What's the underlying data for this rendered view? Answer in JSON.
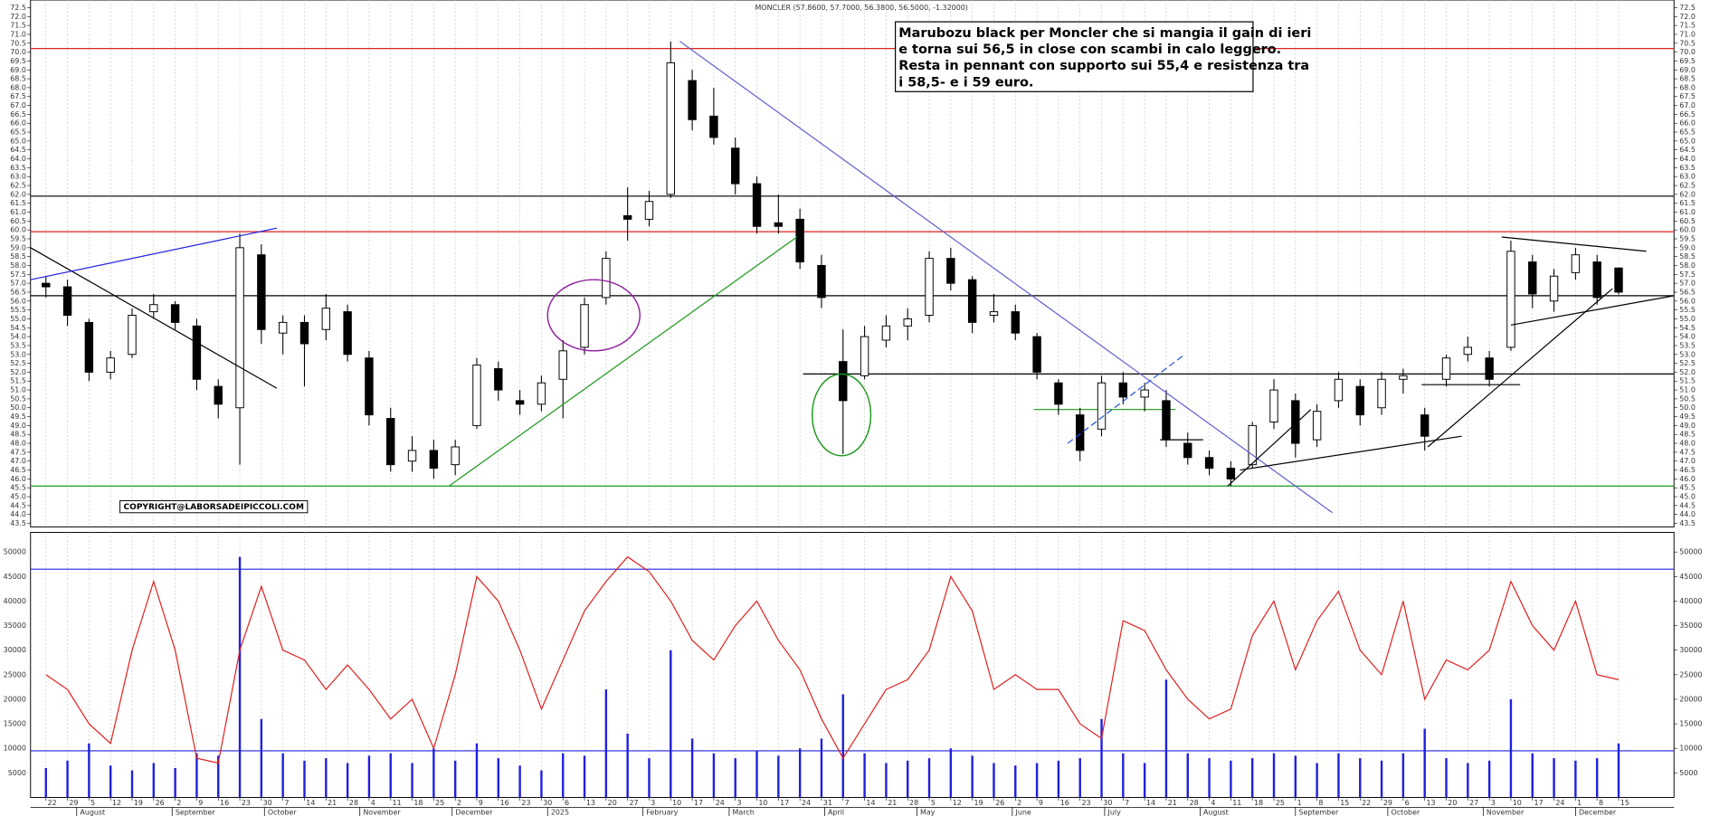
{
  "chart_data": {
    "type": "candlestick",
    "title": "MONCLER (57.8600, 57.7000, 56.3800, 56.5000, -1.32000)",
    "annotation": [
      "Marubozu black per Moncler che si mangia il gain di ieri",
      "e torna sui 56,5 in close con scambi in calo leggero.",
      "Resta in pennant con supporto sui 55,4 e resistenza tra",
      "i 58,5- e i 59 euro."
    ],
    "copyright": "COPYRIGHT@LABORSADEIPICCOLI.COM",
    "xlim": [
      "2024-07-17",
      "2026-01-02"
    ],
    "x": [
      "2024-07-22",
      "2024-07-29",
      "2024-08-05",
      "2024-08-12",
      "2024-08-19",
      "2024-08-26",
      "2024-09-02",
      "2024-09-09",
      "2024-09-16",
      "2024-09-23",
      "2024-09-30",
      "2024-10-07",
      "2024-10-14",
      "2024-10-21",
      "2024-10-28",
      "2024-11-04",
      "2024-11-11",
      "2024-11-18",
      "2024-11-25",
      "2024-12-02",
      "2024-12-09",
      "2024-12-16",
      "2024-12-23",
      "2024-12-30",
      "2025-01-06",
      "2025-01-13",
      "2025-01-20",
      "2025-01-27",
      "2025-02-03",
      "2025-02-10",
      "2025-02-17",
      "2025-02-24",
      "2025-03-03",
      "2025-03-10",
      "2025-03-17",
      "2025-03-24",
      "2025-03-31",
      "2025-04-07",
      "2025-04-14",
      "2025-04-21",
      "2025-04-28",
      "2025-05-05",
      "2025-05-12",
      "2025-05-19",
      "2025-05-26",
      "2025-06-02",
      "2025-06-09",
      "2025-06-16",
      "2025-06-23",
      "2025-06-30",
      "2025-07-07",
      "2025-07-14",
      "2025-07-21",
      "2025-07-28",
      "2025-08-04",
      "2025-08-11",
      "2025-08-18",
      "2025-08-25",
      "2025-09-01",
      "2025-09-08",
      "2025-09-15",
      "2025-09-22",
      "2025-09-29",
      "2025-10-06",
      "2025-10-13",
      "2025-10-20",
      "2025-10-27",
      "2025-11-03",
      "2025-11-10",
      "2025-11-17",
      "2025-11-24",
      "2025-12-01",
      "2025-12-08",
      "2025-12-15"
    ],
    "x_day_labels": [
      "22",
      "29",
      "5",
      "12",
      "19",
      "26",
      "2",
      "9",
      "16",
      "23",
      "30",
      "7",
      "14",
      "21",
      "28",
      "4",
      "11",
      "18",
      "25",
      "2",
      "9",
      "16",
      "23",
      "30",
      "6",
      "13",
      "20",
      "27",
      "3",
      "10",
      "17",
      "24",
      "3",
      "10",
      "17",
      "24",
      "31",
      "7",
      "14",
      "21",
      "28",
      "5",
      "12",
      "19",
      "26",
      "2",
      "9",
      "16",
      "23",
      "30",
      "7",
      "14",
      "21",
      "28",
      "4",
      "11",
      "18",
      "25",
      "1",
      "8",
      "15",
      "22",
      "29",
      "6",
      "13",
      "20",
      "27",
      "3",
      "10",
      "17",
      "24",
      "1",
      "8",
      "15"
    ],
    "xticks": [
      {
        "value": "2024-08-01",
        "label": "August"
      },
      {
        "value": "2024-09-01",
        "label": "September"
      },
      {
        "value": "2024-10-01",
        "label": "October"
      },
      {
        "value": "2024-11-01",
        "label": "November"
      },
      {
        "value": "2024-12-01",
        "label": "December"
      },
      {
        "value": "2025-01-01",
        "label": "2025"
      },
      {
        "value": "2025-02-01",
        "label": "February"
      },
      {
        "value": "2025-03-01",
        "label": "March"
      },
      {
        "value": "2025-04-01",
        "label": "April"
      },
      {
        "value": "2025-05-01",
        "label": "May"
      },
      {
        "value": "2025-06-01",
        "label": "June"
      },
      {
        "value": "2025-07-01",
        "label": "July"
      },
      {
        "value": "2025-08-01",
        "label": "August"
      },
      {
        "value": "2025-09-01",
        "label": "September"
      },
      {
        "value": "2025-10-01",
        "label": "October"
      },
      {
        "value": "2025-11-01",
        "label": "November"
      },
      {
        "value": "2025-12-01",
        "label": "December"
      }
    ],
    "open": [
      57.0,
      56.8,
      54.8,
      52.0,
      53.0,
      55.4,
      55.8,
      54.6,
      51.2,
      50.0,
      58.6,
      54.2,
      54.8,
      54.4,
      55.4,
      52.8,
      49.4,
      47.0,
      47.6,
      46.8,
      49.0,
      52.2,
      50.4,
      50.2,
      51.6,
      53.4,
      56.2,
      60.8,
      60.6,
      62.0,
      68.4,
      66.4,
      64.6,
      62.6,
      60.4,
      60.6,
      58.0,
      52.6,
      51.8,
      53.8,
      54.6,
      55.2,
      58.4,
      57.2,
      55.2,
      55.4,
      54.0,
      51.4,
      49.6,
      48.8,
      51.4,
      50.6,
      50.4,
      48.0,
      47.2,
      46.6,
      46.8,
      49.2,
      50.4,
      48.2,
      50.4,
      51.2,
      50.0,
      51.6,
      49.6,
      51.6,
      53.0,
      52.8,
      53.4,
      58.2,
      56.0,
      57.6,
      58.2,
      57.86
    ],
    "high": [
      57.4,
      57.2,
      55.0,
      53.2,
      55.6,
      56.4,
      56.0,
      55.0,
      51.6,
      59.8,
      59.2,
      55.2,
      55.2,
      56.4,
      55.8,
      53.2,
      50.0,
      48.4,
      48.2,
      48.2,
      52.8,
      52.6,
      51.0,
      51.8,
      53.8,
      56.2,
      58.8,
      62.4,
      62.2,
      70.6,
      69.0,
      68.0,
      65.2,
      63.0,
      62.0,
      61.2,
      58.6,
      54.4,
      54.6,
      55.2,
      55.6,
      58.8,
      59.0,
      57.4,
      56.4,
      55.8,
      54.2,
      51.6,
      50.0,
      51.8,
      52.0,
      51.4,
      51.0,
      48.6,
      47.6,
      47.0,
      49.2,
      51.6,
      50.8,
      50.2,
      52.0,
      51.6,
      52.0,
      52.2,
      50.0,
      53.0,
      54.0,
      53.2,
      59.4,
      58.6,
      57.8,
      59.0,
      58.6,
      57.9
    ],
    "low": [
      56.2,
      54.6,
      51.5,
      51.6,
      52.8,
      55.0,
      54.4,
      51.0,
      49.4,
      46.8,
      53.6,
      53.0,
      51.2,
      53.8,
      52.6,
      49.0,
      46.4,
      46.4,
      46.0,
      46.2,
      48.8,
      50.4,
      49.6,
      49.8,
      49.4,
      53.0,
      55.8,
      59.4,
      60.2,
      61.8,
      65.6,
      64.8,
      62.0,
      59.8,
      59.8,
      57.8,
      55.6,
      47.4,
      51.6,
      53.4,
      53.8,
      54.8,
      56.6,
      54.2,
      54.8,
      53.8,
      51.6,
      49.6,
      47.0,
      48.4,
      50.2,
      49.8,
      47.8,
      46.8,
      46.2,
      45.6,
      46.6,
      48.8,
      47.2,
      47.8,
      50.0,
      49.0,
      49.6,
      50.8,
      47.6,
      51.2,
      52.6,
      51.2,
      53.2,
      55.6,
      55.4,
      57.2,
      55.8,
      56.38
    ],
    "close": [
      56.8,
      55.2,
      52.0,
      52.8,
      55.2,
      55.8,
      54.8,
      51.6,
      50.2,
      59.0,
      54.4,
      54.8,
      53.6,
      55.6,
      53.0,
      49.6,
      46.8,
      47.6,
      46.6,
      47.8,
      52.4,
      51.0,
      50.2,
      51.4,
      53.2,
      55.8,
      58.4,
      60.6,
      61.6,
      69.4,
      66.2,
      65.2,
      62.6,
      60.2,
      60.2,
      58.2,
      56.2,
      50.4,
      54.0,
      54.6,
      55.0,
      58.4,
      57.0,
      54.8,
      55.4,
      54.2,
      52.0,
      50.2,
      47.6,
      51.4,
      50.6,
      51.0,
      48.2,
      47.2,
      46.6,
      46.0,
      49.0,
      51.0,
      48.0,
      49.8,
      51.6,
      49.6,
      51.6,
      51.8,
      48.4,
      52.8,
      53.4,
      51.6,
      58.8,
      56.4,
      57.4,
      58.6,
      56.2,
      56.5
    ],
    "ylim": [
      43.3,
      72.93
    ],
    "yticks": [
      43.5,
      {
        "value": 44,
        "label": "44.0"
      },
      44.5,
      {
        "value": 45,
        "label": "45.0"
      },
      45.5,
      {
        "value": 46,
        "label": "46.0"
      },
      46.5,
      {
        "value": 47,
        "label": "47.0"
      },
      47.5,
      {
        "value": 48,
        "label": "48.0"
      },
      48.5,
      {
        "value": 49,
        "label": "49.0"
      },
      49.5,
      {
        "value": 50,
        "label": "50.0"
      },
      50.5,
      {
        "value": 51,
        "label": "51.0"
      },
      51.5,
      {
        "value": 52,
        "label": "52.0"
      },
      52.5,
      {
        "value": 53,
        "label": "53.0"
      },
      53.5,
      {
        "value": 54,
        "label": "54.0"
      },
      54.5,
      {
        "value": 55,
        "label": "55.0"
      },
      55.5,
      {
        "value": 56,
        "label": "56.0"
      },
      56.5,
      {
        "value": 57,
        "label": "57.0"
      },
      57.5,
      {
        "value": 58,
        "label": "58.0"
      },
      58.5,
      {
        "value": 59,
        "label": "59.0"
      },
      59.5,
      {
        "value": 60,
        "label": "60.0"
      },
      60.5,
      {
        "value": 61,
        "label": "61.0"
      },
      61.5,
      {
        "value": 62,
        "label": "62.0"
      },
      62.5,
      {
        "value": 63,
        "label": "63.0"
      },
      63.5,
      {
        "value": 64,
        "label": "64.0"
      },
      64.5,
      {
        "value": 65,
        "label": "65.0"
      },
      65.5,
      {
        "value": 66,
        "label": "66.0"
      },
      66.5,
      {
        "value": 67,
        "label": "67.0"
      },
      67.5,
      {
        "value": 68,
        "label": "68.0"
      },
      68.5,
      {
        "value": 69,
        "label": "69.0"
      },
      69.5,
      {
        "value": 70,
        "label": "70.0"
      },
      70.5,
      {
        "value": 71,
        "label": "71.0"
      },
      71.5,
      {
        "value": 72,
        "label": "72.0"
      },
      72.5
    ],
    "levels": [
      {
        "value": 70.2,
        "color": "#e02020"
      },
      {
        "value": 61.9,
        "color": "#000000"
      },
      {
        "value": 59.9,
        "color": "#e02020"
      },
      {
        "value": 56.3,
        "color": "#000000"
      },
      {
        "value": 51.9,
        "color": "#000000",
        "from": "2025-03-25"
      },
      {
        "value": 45.6,
        "color": "#1a9a1a"
      },
      {
        "value": 49.9,
        "color": "#1a9a1a",
        "from": "2025-06-08",
        "to": "2025-07-24"
      }
    ],
    "trendlines": [
      {
        "x": [
          "2024-07-17",
          "2024-10-05"
        ],
        "y": [
          59.0,
          51.1
        ],
        "color": "#000000"
      },
      {
        "x": [
          "2024-07-17",
          "2024-10-05"
        ],
        "y": [
          57.2,
          60.1
        ],
        "color": "#2020e0"
      },
      {
        "x": [
          "2024-11-30",
          "2025-03-23"
        ],
        "y": [
          45.6,
          59.6
        ],
        "color": "#1a9a1a"
      },
      {
        "x": [
          "2025-02-13",
          "2025-09-13"
        ],
        "y": [
          70.6,
          44.1
        ],
        "color": "#6060d0"
      },
      {
        "x": [
          "2025-06-19",
          "2025-07-27"
        ],
        "y": [
          48.0,
          53.0
        ],
        "color": "#2050e0",
        "dash": true
      },
      {
        "x": [
          "2025-07-19",
          "2025-08-02"
        ],
        "y": [
          48.2,
          48.2
        ],
        "color": "#000000"
      },
      {
        "x": [
          "2025-08-10",
          "2025-09-06"
        ],
        "y": [
          45.6,
          49.9
        ],
        "color": "#000000"
      },
      {
        "x": [
          "2025-08-14",
          "2025-10-25"
        ],
        "y": [
          46.5,
          48.4
        ],
        "color": "#000000"
      },
      {
        "x": [
          "2025-10-14",
          "2025-12-13"
        ],
        "y": [
          47.8,
          56.7
        ],
        "color": "#000000"
      },
      {
        "x": [
          "2025-10-12",
          "2025-11-13"
        ],
        "y": [
          51.3,
          51.3
        ],
        "color": "#000000"
      },
      {
        "x": [
          "2025-11-07",
          "2025-12-24"
        ],
        "y": [
          59.6,
          58.8
        ],
        "color": "#000000"
      },
      {
        "x": [
          "2025-11-10",
          "2026-01-02"
        ],
        "y": [
          54.65,
          56.3
        ],
        "color": "#000000"
      }
    ],
    "ellipses": [
      {
        "x": [
          "2025-01-01",
          "2025-01-31"
        ],
        "y": [
          53.2,
          57.2
        ],
        "color": "#9020a0"
      },
      {
        "x": [
          "2025-03-28",
          "2025-04-16"
        ],
        "y": [
          47.3,
          51.9
        ],
        "color": "#1a9a1a"
      }
    ],
    "volume": {
      "color": "#2020e0",
      "values": [
        6000,
        7500,
        11000,
        6500,
        5500,
        7000,
        6000,
        9000,
        8500,
        49000,
        16000,
        9000,
        7500,
        8000,
        7000,
        8500,
        9000,
        7000,
        10000,
        7500,
        11000,
        8000,
        6500,
        5500,
        9000,
        8500,
        22000,
        13000,
        8000,
        30000,
        12000,
        9000,
        8000,
        9500,
        8500,
        10000,
        12000,
        21000,
        9000,
        7000,
        7500,
        8000,
        10000,
        8500,
        7000,
        6500,
        7000,
        7500,
        8000,
        16000,
        9000,
        7000,
        24000,
        9000,
        8000,
        7500,
        8000,
        9000,
        8500,
        7000,
        9000,
        8000,
        7500,
        9000,
        14000,
        8000,
        7000,
        7500,
        20000,
        9000,
        8000,
        7500,
        8000,
        11000
      ]
    },
    "oscillator": {
      "color": "#e02020",
      "values": [
        25000,
        22000,
        15000,
        11000,
        30000,
        44000,
        30000,
        8000,
        7000,
        30000,
        43000,
        30000,
        28000,
        22000,
        27000,
        22000,
        16000,
        20000,
        10000,
        25000,
        45000,
        40000,
        30000,
        18000,
        28000,
        38000,
        44000,
        49000,
        46000,
        40000,
        32000,
        28000,
        35000,
        40000,
        32000,
        26000,
        16000,
        8000,
        15000,
        22000,
        24000,
        30000,
        45000,
        38000,
        22000,
        25000,
        22000,
        22000,
        15000,
        12000,
        36000,
        34000,
        26000,
        20000,
        16000,
        18000,
        33000,
        40000,
        26000,
        36000,
        42000,
        30000,
        25000,
        40000,
        20000,
        28000,
        26000,
        30000,
        44000,
        35000,
        30000,
        40000,
        25000,
        24000
      ]
    },
    "vlim": [
      0,
      54000
    ],
    "vticks": [
      5000,
      10000,
      15000,
      20000,
      25000,
      30000,
      35000,
      40000,
      45000,
      50000
    ],
    "vlevels": [
      {
        "value": 46500,
        "color": "#2020e0"
      },
      {
        "value": 9500,
        "color": "#2020e0"
      }
    ],
    "grid": "vertical"
  }
}
